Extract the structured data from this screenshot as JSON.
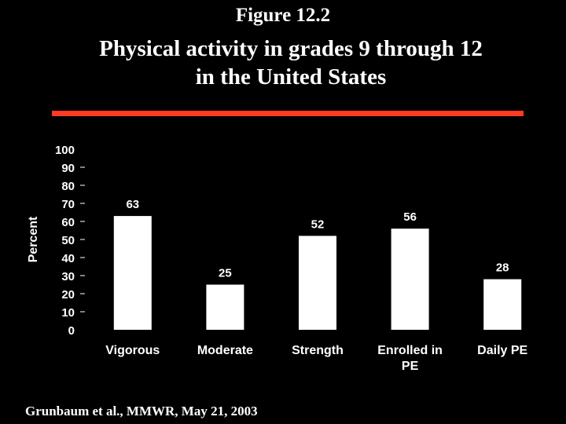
{
  "header": {
    "figure_label": "Figure 12.2",
    "title_line1": "Physical activity in grades 9 through 12",
    "title_line2": "in the United States"
  },
  "colors": {
    "background": "#000000",
    "accent_rule": "#ff3b21",
    "bars": "#ffffff"
  },
  "chart_data": {
    "type": "bar",
    "title": "Physical activity in grades 9 through 12 in the United States",
    "ylabel": "Percent",
    "xlabel": "",
    "ylim": [
      0,
      100
    ],
    "yticks": [
      0,
      10,
      20,
      30,
      40,
      50,
      60,
      70,
      80,
      90,
      100
    ],
    "categories": [
      [
        "Vigorous"
      ],
      [
        "Moderate"
      ],
      [
        "Strength"
      ],
      [
        "Enrolled in",
        "PE"
      ],
      [
        "Daily PE"
      ]
    ],
    "values": [
      63,
      25,
      52,
      56,
      28
    ],
    "data_labels": [
      "63",
      "25",
      "52",
      "56",
      "28"
    ],
    "grid": false,
    "legend": "none"
  },
  "footer": {
    "citation": "Grunbaum et al., MMWR, May 21, 2003"
  }
}
